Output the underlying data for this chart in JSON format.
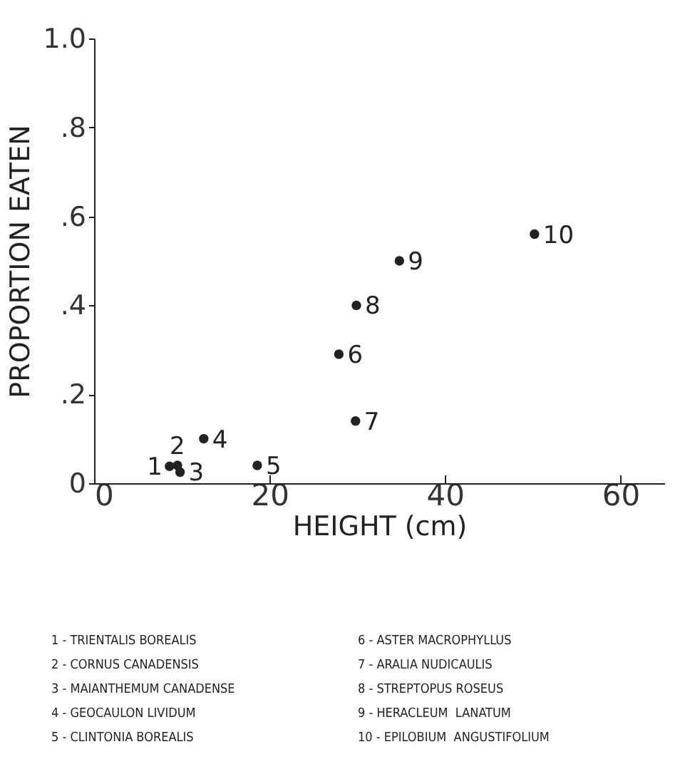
{
  "chart_data": {
    "type": "scatter",
    "xlabel": "HEIGHT (cm)",
    "ylabel": "PROPORTION EATEN",
    "x": [
      8.6,
      9.5,
      9.8,
      12.5,
      18.6,
      27.9,
      29.8,
      29.9,
      34.8,
      50.2
    ],
    "series": [
      {
        "color": "#222222",
        "values": [
          0.038,
          0.04,
          0.025,
          0.1,
          0.04,
          0.29,
          0.14,
          0.4,
          0.5,
          0.56
        ]
      }
    ],
    "xlim": [
      0,
      65
    ],
    "xticks": [
      0,
      20,
      40,
      60
    ],
    "ylim": [
      0,
      1
    ],
    "yticks": [
      {
        "value": 0,
        "label": "0"
      },
      {
        "value": 0.2,
        "label": ".2"
      },
      {
        "value": 0.4,
        "label": ".4"
      },
      {
        "value": 0.6,
        "label": ".6"
      },
      {
        "value": 0.8,
        "label": ".8"
      },
      {
        "value": 1,
        "label": "1.0"
      }
    ],
    "grid": false,
    "marker": "circle",
    "annotations": [
      {
        "text": "1",
        "x": 8.6,
        "y": 0.038
      },
      {
        "text": "2",
        "x": 9.5,
        "y": 0.04
      },
      {
        "text": "3",
        "x": 9.8,
        "y": 0.025
      },
      {
        "text": "4",
        "x": 12.5,
        "y": 0.1
      },
      {
        "text": "5",
        "x": 18.6,
        "y": 0.04
      },
      {
        "text": "6",
        "x": 27.9,
        "y": 0.29
      },
      {
        "text": "7",
        "x": 29.8,
        "y": 0.14
      },
      {
        "text": "8",
        "x": 29.9,
        "y": 0.4
      },
      {
        "text": "9",
        "x": 34.8,
        "y": 0.5
      },
      {
        "text": "10",
        "x": 50.2,
        "y": 0.56
      },
      "1 - TRIENTALIS BOREALIS",
      "2 - CORNUS CANADENSIS",
      "3 - MAIANTHEMUM CANADENSE",
      "4 - GEOCAULON LIVIDUM",
      "5 - CLINTONIA BOREALIS",
      "6 - ASTER MACROPHYLLUS",
      "7 - ARALIA NUDICAULIS",
      "8 - STREPTOPUS ROSEUS",
      "9 - HERACLEUM  LANATUM",
      "10 - EPILOBIUM  ANGUSTIFOLIUM"
    ]
  }
}
